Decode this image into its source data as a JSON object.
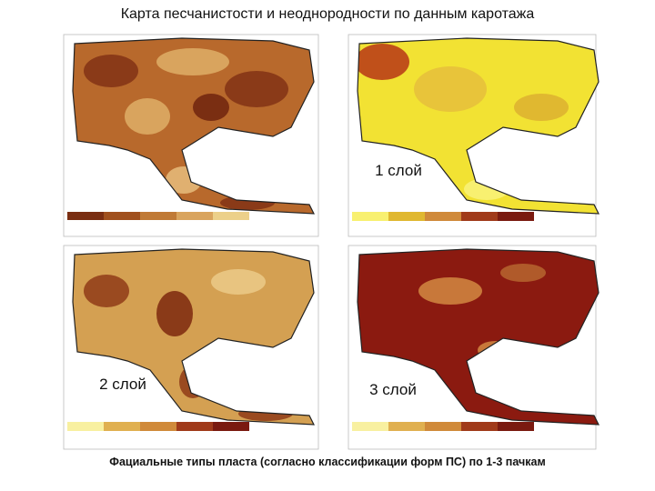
{
  "title": "Карта песчанистости и неоднородности по данным каротажа",
  "layers": [
    "1 слой",
    "2 слой",
    "3 слой"
  ],
  "caption": "Фациальные типы пласта (согласно классификации форм ПС) по 1-3 пачкам"
}
